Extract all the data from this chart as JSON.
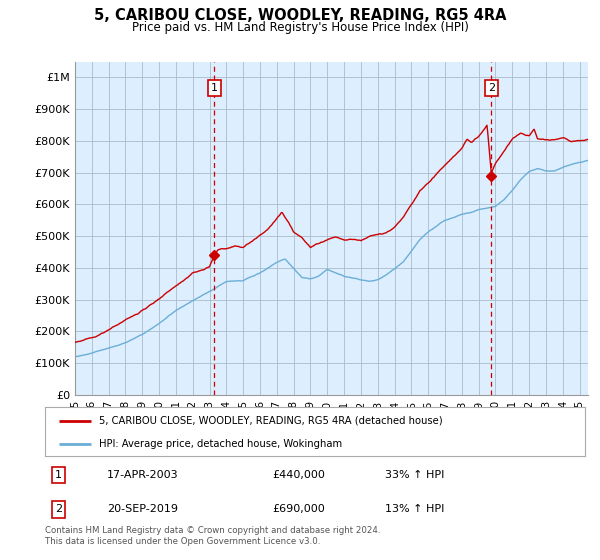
{
  "title": "5, CARIBOU CLOSE, WOODLEY, READING, RG5 4RA",
  "subtitle": "Price paid vs. HM Land Registry's House Price Index (HPI)",
  "ylabel_ticks": [
    "£0",
    "£100K",
    "£200K",
    "£300K",
    "£400K",
    "£500K",
    "£600K",
    "£700K",
    "£800K",
    "£900K",
    "£1M"
  ],
  "ytick_values": [
    0,
    100000,
    200000,
    300000,
    400000,
    500000,
    600000,
    700000,
    800000,
    900000,
    1000000
  ],
  "ylim": [
    0,
    1050000
  ],
  "sale1_x": 2003.29,
  "sale1_price": 440000,
  "sale2_x": 2019.75,
  "sale2_price": 690000,
  "legend_line1": "5, CARIBOU CLOSE, WOODLEY, READING, RG5 4RA (detached house)",
  "legend_line2": "HPI: Average price, detached house, Wokingham",
  "footnote": "Contains HM Land Registry data © Crown copyright and database right 2024.\nThis data is licensed under the Open Government Licence v3.0.",
  "hpi_color": "#6baed6",
  "price_color": "#cc0000",
  "vline_color": "#cc0000",
  "bg_plot": "#ddeeff",
  "background_color": "#ffffff",
  "grid_color": "#aabbcc",
  "table_row1": [
    "1",
    "17-APR-2003",
    "£440,000",
    "33% ↑ HPI"
  ],
  "table_row2": [
    "2",
    "20-SEP-2019",
    "£690,000",
    "13% ↑ HPI"
  ],
  "xlim_start": 1995.0,
  "xlim_end": 2025.5
}
